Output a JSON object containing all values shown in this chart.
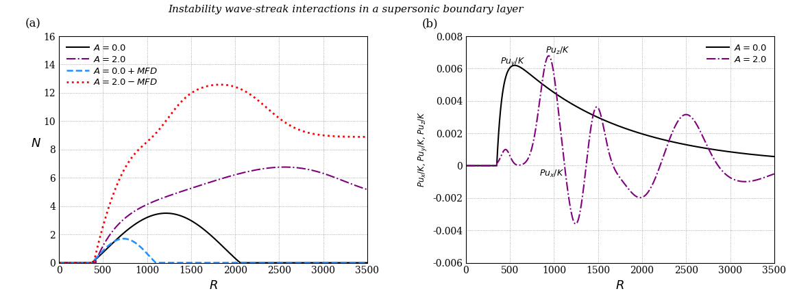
{
  "title": "Instability wave-streak interactions in a supersonic boundary layer",
  "xlim": [
    0,
    3500
  ],
  "ylim_a": [
    0,
    16
  ],
  "ylim_b": [
    -0.006,
    0.008
  ],
  "xticks": [
    0,
    500,
    1000,
    1500,
    2000,
    2500,
    3000,
    3500
  ],
  "yticks_a": [
    0,
    2,
    4,
    6,
    8,
    10,
    12,
    14,
    16
  ],
  "yticks_b": [
    -0.006,
    -0.004,
    -0.002,
    0.0,
    0.002,
    0.004,
    0.006,
    0.008
  ],
  "color_black": "#000000",
  "color_purple": "#800080",
  "color_blue": "#1e90ff",
  "color_red": "#ff0000",
  "background": "#ffffff",
  "grid_color": "#999999",
  "grid_ls": ":",
  "grid_lw": 0.6
}
